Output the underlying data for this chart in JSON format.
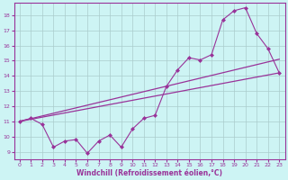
{
  "xlabel": "Windchill (Refroidissement éolien,°C)",
  "bg_color": "#cdf4f4",
  "line_color": "#993399",
  "grid_color": "#aacccc",
  "xlim": [
    -0.5,
    23.5
  ],
  "ylim": [
    8.5,
    18.8
  ],
  "xticks": [
    0,
    1,
    2,
    3,
    4,
    5,
    6,
    7,
    8,
    9,
    10,
    11,
    12,
    13,
    14,
    15,
    16,
    17,
    18,
    19,
    20,
    21,
    22,
    23
  ],
  "yticks": [
    9,
    10,
    11,
    12,
    13,
    14,
    15,
    16,
    17,
    18
  ],
  "line1_x": [
    0,
    1,
    2,
    3,
    4,
    5,
    6,
    7,
    8,
    9,
    10,
    11,
    12,
    13,
    14,
    15,
    16,
    17,
    18,
    19,
    20,
    21,
    22,
    23
  ],
  "line1_y": [
    11.0,
    11.2,
    10.8,
    9.3,
    9.7,
    9.8,
    8.9,
    9.7,
    10.1,
    9.3,
    10.5,
    11.2,
    11.4,
    13.3,
    14.4,
    15.2,
    15.05,
    15.4,
    17.7,
    18.3,
    18.5,
    16.8,
    15.8,
    14.2
  ],
  "line2_x": [
    0,
    23
  ],
  "line2_y": [
    11.0,
    15.1
  ],
  "line3_x": [
    0,
    23
  ],
  "line3_y": [
    11.0,
    14.2
  ]
}
